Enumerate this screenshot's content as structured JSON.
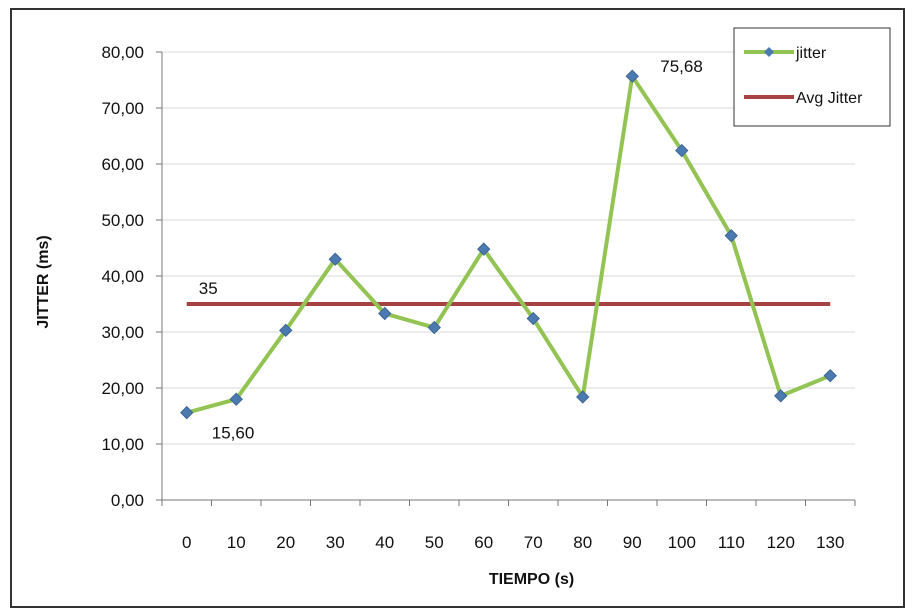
{
  "chart_data": {
    "type": "line",
    "title": "",
    "xlabel": "TIEMPO (s)",
    "ylabel": "JITTER (ms)",
    "x": [
      0,
      10,
      20,
      30,
      40,
      50,
      60,
      70,
      80,
      90,
      100,
      110,
      120,
      130
    ],
    "x_tick_labels": [
      "0",
      "10",
      "20",
      "30",
      "40",
      "50",
      "60",
      "70",
      "80",
      "90",
      "100",
      "110",
      "120",
      "130"
    ],
    "y_tick_labels": [
      "0,00",
      "10,00",
      "20,00",
      "30,00",
      "40,00",
      "50,00",
      "60,00",
      "70,00",
      "80,00"
    ],
    "ylim": [
      0,
      80
    ],
    "grid": true,
    "legend_position": "top-right",
    "series": [
      {
        "name": "jitter",
        "color": "#92c353",
        "marker_color": "#4a7ab0",
        "values": [
          15.6,
          18.0,
          30.3,
          43.0,
          33.3,
          30.8,
          44.8,
          32.4,
          18.4,
          75.68,
          62.4,
          47.2,
          18.6,
          22.2
        ]
      },
      {
        "name": "Avg Jitter",
        "color": "#a54342",
        "values": [
          35,
          35,
          35,
          35,
          35,
          35,
          35,
          35,
          35,
          35,
          35,
          35,
          35,
          35
        ]
      }
    ],
    "annotations": [
      {
        "text": "75,68",
        "series": 0,
        "index": 9
      },
      {
        "text": "15,60",
        "series": 0,
        "index": 0
      },
      {
        "text": "35",
        "series": 1,
        "index": 0
      }
    ]
  }
}
